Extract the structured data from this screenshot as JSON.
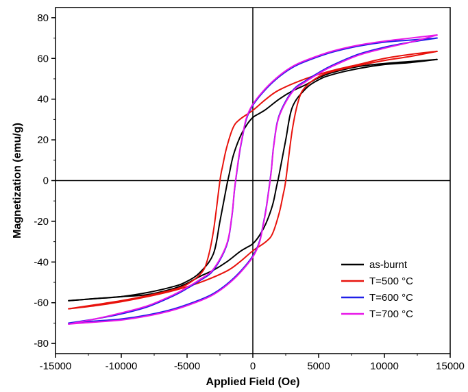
{
  "chart_data": {
    "type": "line",
    "title": "",
    "xlabel": "Applied Field (Oe)",
    "ylabel": "Magnetization (emu/g)",
    "xlim": [
      -15000,
      15000
    ],
    "ylim": [
      -85,
      85
    ],
    "xticks": [
      -15000,
      -10000,
      -5000,
      0,
      5000,
      10000,
      15000
    ],
    "yticks": [
      -80,
      -60,
      -40,
      -20,
      0,
      20,
      40,
      60,
      80
    ],
    "grid": false,
    "legend_position": "bottom-right",
    "zero_lines": true,
    "series": [
      {
        "name": "as-burnt",
        "color": "#000000",
        "upper_branch": {
          "x": [
            14000,
            12000,
            10000,
            8000,
            6000,
            5000,
            4000,
            3000,
            2000,
            1000,
            500,
            0,
            -500,
            -1000,
            -1500,
            -1800,
            -2000,
            -2500,
            -3000,
            -4000,
            -5000,
            -6000,
            -8000,
            -10000,
            -12000,
            -14000
          ],
          "y": [
            59.5,
            58.5,
            57.5,
            56,
            53,
            50.5,
            47,
            44,
            40,
            35,
            33,
            31,
            27,
            21,
            12,
            3,
            -3,
            -20,
            -36,
            -45,
            -49.5,
            -52,
            -55,
            -57,
            -58,
            -59
          ]
        },
        "lower_branch": {
          "x": [
            -14000,
            -12000,
            -10000,
            -8000,
            -6000,
            -5000,
            -4000,
            -3000,
            -2000,
            -1000,
            -500,
            0,
            500,
            1000,
            1500,
            1800,
            2000,
            2500,
            3000,
            4000,
            5000,
            6000,
            8000,
            10000,
            12000,
            14000
          ],
          "y": [
            -59,
            -58,
            -57,
            -56,
            -53,
            -50.5,
            -47,
            -44,
            -40,
            -35,
            -33,
            -31,
            -27,
            -21,
            -12,
            -3,
            3,
            20,
            36,
            45,
            49.5,
            52,
            55,
            57,
            58,
            59.5
          ]
        }
      },
      {
        "name": "T=500 °C",
        "color": "#e8120c",
        "upper_branch": {
          "x": [
            14000,
            12000,
            10000,
            8000,
            6000,
            4000,
            2000,
            1000,
            0,
            -1000,
            -1500,
            -2000,
            -2300,
            -2500,
            -3000,
            -3500,
            -4000,
            -5000,
            -6000,
            -8000,
            -10000,
            -12000,
            -14000
          ],
          "y": [
            63.5,
            62,
            60,
            57,
            54,
            50,
            44.5,
            40,
            34.5,
            30,
            26,
            16,
            7,
            0,
            -25,
            -40,
            -46,
            -51,
            -53.5,
            -56.5,
            -59,
            -61,
            -63
          ]
        },
        "lower_branch": {
          "x": [
            -14000,
            -12000,
            -10000,
            -8000,
            -6000,
            -4000,
            -2000,
            -1000,
            0,
            1000,
            1500,
            2000,
            2300,
            2500,
            3000,
            3500,
            4000,
            5000,
            6000,
            8000,
            10000,
            12000,
            14000
          ],
          "y": [
            -63,
            -61.5,
            -59.5,
            -57,
            -54,
            -50,
            -44.5,
            -40,
            -34.5,
            -30,
            -26,
            -16,
            -7,
            0,
            25,
            40,
            46,
            51,
            53.5,
            56.5,
            59,
            61,
            63.5
          ]
        }
      },
      {
        "name": "T=600 °C",
        "color": "#1f1fe8",
        "upper_branch": {
          "x": [
            14000,
            12000,
            10000,
            8000,
            6000,
            4000,
            3000,
            2000,
            1000,
            0,
            -500,
            -800,
            -1000,
            -1200,
            -1400,
            -1600,
            -2000,
            -3000,
            -4000,
            -5000,
            -6000,
            -8000,
            -10000,
            -12000,
            -14000
          ],
          "y": [
            70,
            69,
            68,
            66,
            63,
            58.5,
            55.5,
            51,
            45,
            37,
            30,
            21,
            14,
            5,
            -5,
            -18,
            -32,
            -44,
            -49,
            -53,
            -56.5,
            -62,
            -65.5,
            -68,
            -70
          ]
        },
        "lower_branch": {
          "x": [
            -14000,
            -12000,
            -10000,
            -8000,
            -6000,
            -4000,
            -3000,
            -2000,
            -1000,
            0,
            500,
            800,
            1000,
            1200,
            1400,
            1600,
            2000,
            3000,
            4000,
            5000,
            6000,
            8000,
            10000,
            12000,
            14000
          ],
          "y": [
            -70,
            -69,
            -68,
            -66,
            -63,
            -58.5,
            -55.5,
            -51,
            -45,
            -37,
            -30,
            -21,
            -14,
            -5,
            5,
            18,
            32,
            44,
            49,
            53,
            56.5,
            62,
            65.5,
            68,
            70
          ]
        }
      },
      {
        "name": "T=700 °C",
        "color": "#e817e8",
        "upper_branch": {
          "x": [
            14000,
            12000,
            10000,
            8000,
            6000,
            4000,
            3000,
            2000,
            1000,
            0,
            -500,
            -800,
            -1000,
            -1200,
            -1400,
            -1600,
            -2000,
            -3000,
            -4000,
            -5000,
            -6000,
            -8000,
            -10000,
            -12000,
            -14000
          ],
          "y": [
            71.5,
            70,
            68.5,
            66.5,
            63.5,
            59,
            56,
            51.5,
            45.5,
            37.5,
            30.5,
            21.5,
            14.5,
            5.5,
            -4.5,
            -17.5,
            -31.5,
            -43.5,
            -48.5,
            -52.5,
            -56,
            -61.5,
            -65,
            -68,
            -70.5
          ]
        },
        "lower_branch": {
          "x": [
            -14000,
            -12000,
            -10000,
            -8000,
            -6000,
            -4000,
            -3000,
            -2000,
            -1000,
            0,
            500,
            800,
            1000,
            1200,
            1400,
            1600,
            2000,
            3000,
            4000,
            5000,
            6000,
            8000,
            10000,
            12000,
            14000
          ],
          "y": [
            -70.5,
            -69.5,
            -68.5,
            -66.5,
            -63.5,
            -59,
            -56,
            -51.5,
            -45.5,
            -37.5,
            -30.5,
            -21.5,
            -14.5,
            -5.5,
            4.5,
            17.5,
            31.5,
            43.5,
            48.5,
            52.5,
            56,
            61.5,
            65,
            68,
            71.5
          ]
        }
      }
    ]
  }
}
